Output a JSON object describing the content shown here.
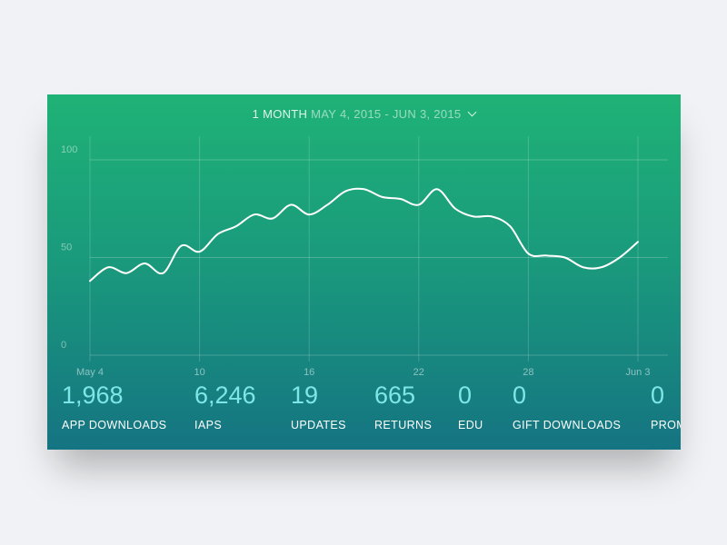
{
  "header": {
    "period_label": "1 MONTH",
    "date_range": "MAY 4, 2015 - JUN 3, 2015",
    "dropdown_icon": "chevron-down-icon"
  },
  "chart_data": {
    "type": "line",
    "title": "",
    "xlabel": "",
    "ylabel": "",
    "ylim": [
      0,
      100
    ],
    "grid": true,
    "y_ticks": [
      "0",
      "50",
      "100"
    ],
    "x_ticks": [
      "May 4",
      "10",
      "16",
      "22",
      "28",
      "Jun 3"
    ],
    "x": [
      "May 4",
      "May 5",
      "May 6",
      "May 7",
      "May 8",
      "May 9",
      "May 10",
      "May 11",
      "May 12",
      "May 13",
      "May 14",
      "May 15",
      "May 16",
      "May 17",
      "May 18",
      "May 19",
      "May 20",
      "May 21",
      "May 22",
      "May 23",
      "May 24",
      "May 25",
      "May 26",
      "May 27",
      "May 28",
      "May 29",
      "May 30",
      "May 31",
      "Jun 1",
      "Jun 2",
      "Jun 3"
    ],
    "series": [
      {
        "values": [
          38,
          45,
          42,
          47,
          42,
          56,
          53,
          62,
          66,
          72,
          70,
          77,
          72,
          77,
          84,
          85,
          81,
          80,
          77,
          85,
          75,
          71,
          71,
          66,
          52,
          51,
          50,
          45,
          45,
          50,
          58
        ],
        "color": "#ffffff"
      }
    ]
  },
  "stats": [
    {
      "value": "1,968",
      "label": "APP DOWNLOADS"
    },
    {
      "value": "6,246",
      "label": "IAPS"
    },
    {
      "value": "19",
      "label": "UPDATES"
    },
    {
      "value": "665",
      "label": "RETURNS"
    },
    {
      "value": "0",
      "label": "EDU"
    },
    {
      "value": "0",
      "label": "GIFT DOWNLOADS"
    },
    {
      "value": "0",
      "label": "PROMO"
    }
  ]
}
